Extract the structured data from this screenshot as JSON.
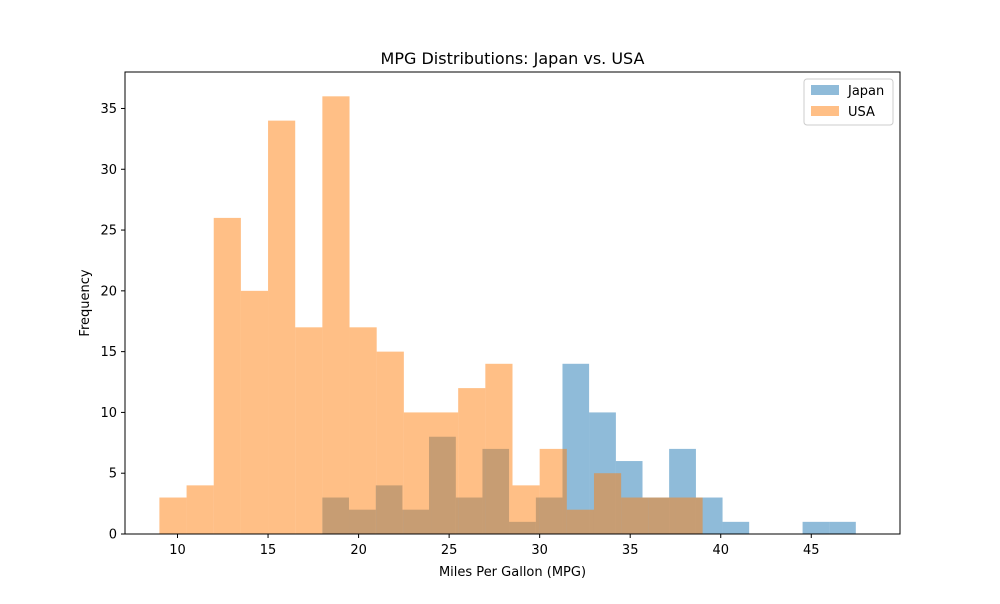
{
  "chart_data": {
    "type": "histogram",
    "title": "MPG Distributions: Japan vs. USA",
    "xlabel": "Miles Per Gallon (MPG)",
    "ylabel": "Frequency",
    "xlim": [
      7.1,
      49.9
    ],
    "ylim": [
      0,
      38
    ],
    "xticks": [
      10,
      15,
      20,
      25,
      30,
      35,
      40,
      45
    ],
    "yticks": [
      0,
      5,
      10,
      15,
      20,
      25,
      30,
      35
    ],
    "grid": false,
    "legend_position": "upper-right",
    "series": [
      {
        "name": "Japan",
        "color": "#1f77b4",
        "opacity": 0.5,
        "bins": [
          {
            "x0": 18.0,
            "x1": 19.47,
            "count": 3
          },
          {
            "x0": 19.47,
            "x1": 20.95,
            "count": 2
          },
          {
            "x0": 20.95,
            "x1": 22.42,
            "count": 4
          },
          {
            "x0": 22.42,
            "x1": 23.89,
            "count": 2
          },
          {
            "x0": 23.89,
            "x1": 25.37,
            "count": 8
          },
          {
            "x0": 25.37,
            "x1": 26.84,
            "count": 3
          },
          {
            "x0": 26.84,
            "x1": 28.31,
            "count": 7
          },
          {
            "x0": 28.31,
            "x1": 29.79,
            "count": 1
          },
          {
            "x0": 29.79,
            "x1": 31.26,
            "count": 3
          },
          {
            "x0": 31.26,
            "x1": 32.73,
            "count": 14
          },
          {
            "x0": 32.73,
            "x1": 34.21,
            "count": 10
          },
          {
            "x0": 34.21,
            "x1": 35.68,
            "count": 6
          },
          {
            "x0": 35.68,
            "x1": 37.15,
            "count": 3
          },
          {
            "x0": 37.15,
            "x1": 38.63,
            "count": 7
          },
          {
            "x0": 38.63,
            "x1": 40.1,
            "count": 3
          },
          {
            "x0": 40.1,
            "x1": 41.57,
            "count": 1
          },
          {
            "x0": 41.57,
            "x1": 43.05,
            "count": 0
          },
          {
            "x0": 43.05,
            "x1": 44.52,
            "count": 0
          },
          {
            "x0": 44.52,
            "x1": 45.99,
            "count": 1
          },
          {
            "x0": 45.99,
            "x1": 47.46,
            "count": 1
          }
        ]
      },
      {
        "name": "USA",
        "color": "#ff7f0e",
        "opacity": 0.5,
        "bins": [
          {
            "x0": 9.0,
            "x1": 10.5,
            "count": 3
          },
          {
            "x0": 10.5,
            "x1": 12.0,
            "count": 4
          },
          {
            "x0": 12.0,
            "x1": 13.5,
            "count": 26
          },
          {
            "x0": 13.5,
            "x1": 15.0,
            "count": 20
          },
          {
            "x0": 15.0,
            "x1": 16.5,
            "count": 34
          },
          {
            "x0": 16.5,
            "x1": 18.0,
            "count": 17
          },
          {
            "x0": 18.0,
            "x1": 19.5,
            "count": 36
          },
          {
            "x0": 19.5,
            "x1": 21.0,
            "count": 17
          },
          {
            "x0": 21.0,
            "x1": 22.5,
            "count": 15
          },
          {
            "x0": 22.5,
            "x1": 24.0,
            "count": 10
          },
          {
            "x0": 24.0,
            "x1": 25.5,
            "count": 10
          },
          {
            "x0": 25.5,
            "x1": 27.0,
            "count": 12
          },
          {
            "x0": 27.0,
            "x1": 28.5,
            "count": 14
          },
          {
            "x0": 28.5,
            "x1": 30.0,
            "count": 4
          },
          {
            "x0": 30.0,
            "x1": 31.5,
            "count": 7
          },
          {
            "x0": 31.5,
            "x1": 33.0,
            "count": 2
          },
          {
            "x0": 33.0,
            "x1": 34.5,
            "count": 5
          },
          {
            "x0": 34.5,
            "x1": 36.0,
            "count": 3
          },
          {
            "x0": 36.0,
            "x1": 37.5,
            "count": 3
          },
          {
            "x0": 37.5,
            "x1": 39.0,
            "count": 3
          }
        ]
      }
    ]
  }
}
